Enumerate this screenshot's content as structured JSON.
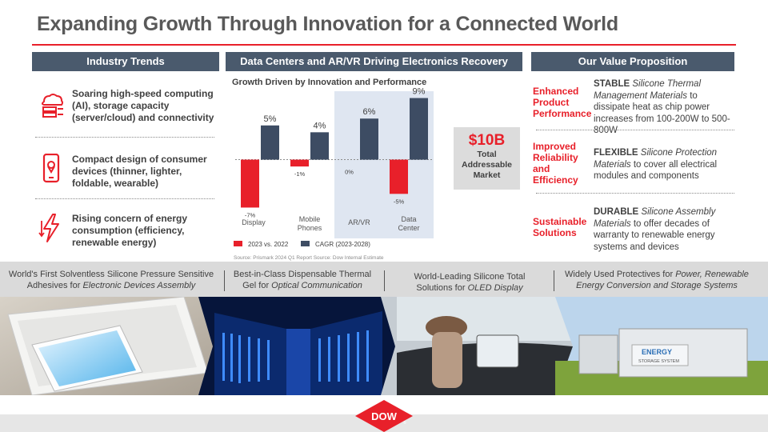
{
  "title": "Expanding Growth Through Innovation for a Connected World",
  "headers": {
    "industry": "Industry Trends",
    "data_centers": "Data Centers and AR/VR Driving Electronics Recovery",
    "value": "Our Value Proposition"
  },
  "trends": [
    {
      "icon": "cloud-server-icon",
      "text": "Soaring high-speed computing (AI), storage capacity (server/cloud) and connectivity"
    },
    {
      "icon": "smartphone-icon",
      "text": "Compact design of consumer devices (thinner, lighter, foldable, wearable)"
    },
    {
      "icon": "energy-bolt-icon",
      "text": "Rising concern of energy consumption (efficiency, renewable energy)"
    }
  ],
  "chart_data": {
    "type": "bar",
    "title": "Growth Driven by Innovation and Performance",
    "categories": [
      "Display",
      "Mobile Phones",
      "AR/VR",
      "Data Center"
    ],
    "series": [
      {
        "name": "2023 vs. 2022",
        "values": [
          -7,
          -1,
          0,
          -5
        ],
        "color": "#e8202a",
        "labels": [
          "-7%",
          "-1%",
          "0%",
          "-5%"
        ]
      },
      {
        "name": "CAGR (2023-2028)",
        "values": [
          5,
          4,
          6,
          9
        ],
        "color": "#3d4c63",
        "labels": [
          "5%",
          "4%",
          "6%",
          "9%"
        ]
      }
    ],
    "ylim": [
      -8,
      10
    ],
    "highlight_categories": [
      "AR/VR",
      "Data Center"
    ],
    "source": "Source: Prismark 2024 Q1 Report     Source: Dow Internal Estimate"
  },
  "tam": {
    "value": "$10B",
    "line1": "Total",
    "line2": "Addressable",
    "line3": "Market"
  },
  "value_props": [
    {
      "label": [
        "Enhanced",
        "Product",
        "Performance"
      ],
      "keyword": "STABLE",
      "italic": "Silicone Thermal Management Materials",
      "rest": "to dissipate heat as chip power increases from 100-200W to 500-800W"
    },
    {
      "label": [
        "Improved",
        "Reliability",
        "and",
        "Efficiency"
      ],
      "keyword": "FLEXIBLE",
      "italic": "Silicone Protection Materials",
      "rest": "to cover all electrical modules and components"
    },
    {
      "label": [
        "Sustainable",
        "Solutions"
      ],
      "keyword": "DURABLE",
      "italic": "Silicone Assembly Materials",
      "rest": "to offer decades of warranty to renewable energy systems and devices"
    }
  ],
  "products": [
    {
      "pre": "World's First Solventless Silicone Pressure Sensitive Adhesives for ",
      "italic": "Electronic Devices Assembly"
    },
    {
      "pre": "Best-in-Class Dispensable Thermal Gel for ",
      "italic": "Optical Communication"
    },
    {
      "pre": "World-Leading Silicone Total Solutions for ",
      "italic": "OLED Display"
    },
    {
      "pre": "Widely Used Protectives for ",
      "italic": "Power, Renewable Energy Conversion and Storage Systems"
    }
  ],
  "photo_texts": {
    "storage_sign_1": "ENERGY",
    "storage_sign_2": "STORAGE SYSTEM"
  },
  "logo": {
    "text": "DOW",
    "mark": "®"
  }
}
